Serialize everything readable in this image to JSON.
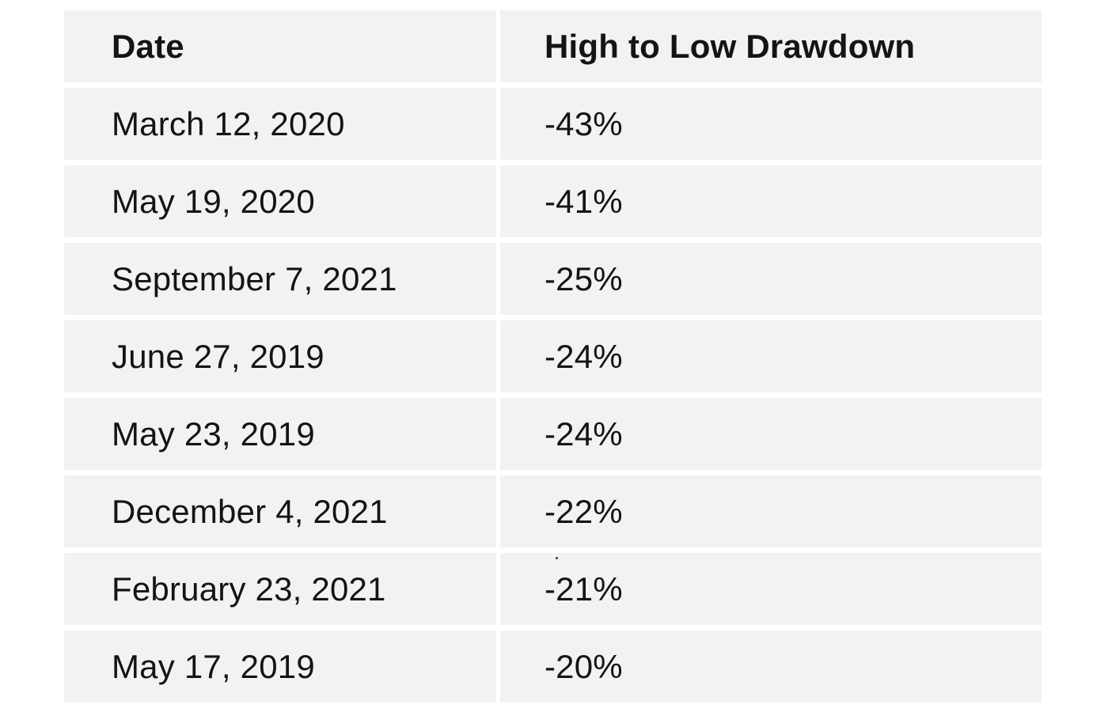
{
  "chart_data": {
    "type": "table",
    "columns": [
      "Date",
      "High to Low Drawdown"
    ],
    "rows": [
      {
        "date": "March 12, 2020",
        "drawdown": "-43%"
      },
      {
        "date": "May 19, 2020",
        "drawdown": "-41%"
      },
      {
        "date": "September 7, 2021",
        "drawdown": "-25%"
      },
      {
        "date": "June 27, 2019",
        "drawdown": "-24%"
      },
      {
        "date": "May 23, 2019",
        "drawdown": "-24%"
      },
      {
        "date": "December 4, 2021",
        "drawdown": "-22%"
      },
      {
        "date": "February 23, 2021",
        "drawdown": "-21%"
      },
      {
        "date": "May 17, 2019",
        "drawdown": "-20%"
      }
    ]
  },
  "colors": {
    "cell_background": "#f2f2f2",
    "gutter": "#ffffff",
    "text": "#141414"
  }
}
